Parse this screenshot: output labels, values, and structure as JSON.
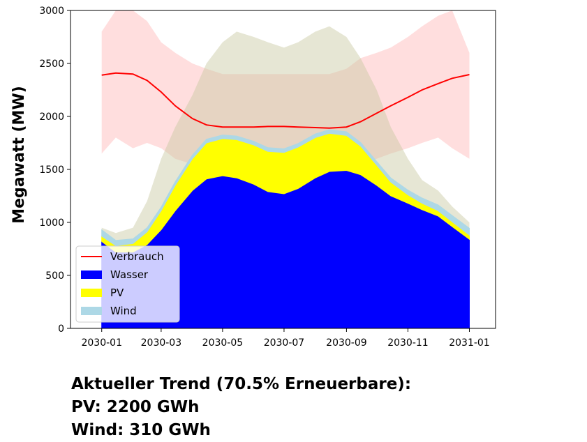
{
  "chart_data": {
    "type": "area",
    "ylabel": "Megawatt (MW)",
    "xlabel": "",
    "title": "",
    "ylim": [
      0,
      3000
    ],
    "xlim": [
      "2029-12-01",
      "2031-01-27"
    ],
    "y_ticks": [
      0,
      500,
      1000,
      1500,
      2000,
      2500,
      3000
    ],
    "x_ticks": [
      "2030-01",
      "2030-03",
      "2030-05",
      "2030-07",
      "2030-09",
      "2030-11",
      "2031-01"
    ],
    "grid": false,
    "legend_position": "lower-left",
    "stacked_series": [
      {
        "name": "Wasser",
        "color": "#0000ff",
        "x": [
          "2030-01-01",
          "2030-01-15",
          "2030-02-01",
          "2030-02-15",
          "2030-03-01",
          "2030-03-15",
          "2030-04-01",
          "2030-04-15",
          "2030-05-01",
          "2030-05-15",
          "2030-06-01",
          "2030-06-15",
          "2030-07-01",
          "2030-07-15",
          "2030-08-01",
          "2030-08-15",
          "2030-09-01",
          "2030-09-15",
          "2030-10-01",
          "2030-10-15",
          "2030-11-01",
          "2030-11-15",
          "2030-12-01",
          "2030-12-15",
          "2031-01-01"
        ],
        "values": [
          820,
          720,
          720,
          790,
          930,
          1110,
          1300,
          1410,
          1440,
          1420,
          1360,
          1290,
          1270,
          1320,
          1420,
          1480,
          1490,
          1450,
          1350,
          1250,
          1180,
          1120,
          1060,
          960,
          840
        ]
      },
      {
        "name": "PV",
        "color": "#ffff00",
        "x": [
          "2030-01-01",
          "2030-01-15",
          "2030-02-01",
          "2030-02-15",
          "2030-03-01",
          "2030-03-15",
          "2030-04-01",
          "2030-04-15",
          "2030-05-01",
          "2030-05-15",
          "2030-06-01",
          "2030-06-15",
          "2030-07-01",
          "2030-07-15",
          "2030-08-01",
          "2030-08-15",
          "2030-09-01",
          "2030-09-15",
          "2030-10-01",
          "2030-10-15",
          "2030-11-01",
          "2030-11-15",
          "2030-12-01",
          "2030-12-15",
          "2031-01-01"
        ],
        "values": [
          50,
          60,
          80,
          120,
          180,
          240,
          300,
          340,
          350,
          360,
          370,
          380,
          390,
          390,
          380,
          360,
          330,
          270,
          190,
          130,
          80,
          60,
          50,
          45,
          40
        ]
      },
      {
        "name": "Wind",
        "color": "#add8e6",
        "x": [
          "2030-01-01",
          "2030-01-15",
          "2030-02-01",
          "2030-02-15",
          "2030-03-01",
          "2030-03-15",
          "2030-04-01",
          "2030-04-15",
          "2030-05-01",
          "2030-05-15",
          "2030-06-01",
          "2030-06-15",
          "2030-07-01",
          "2030-07-15",
          "2030-08-01",
          "2030-08-15",
          "2030-09-01",
          "2030-09-15",
          "2030-10-01",
          "2030-10-15",
          "2030-11-01",
          "2030-11-15",
          "2030-12-01",
          "2030-12-15",
          "2031-01-01"
        ],
        "values": [
          60,
          50,
          45,
          40,
          35,
          35,
          35,
          35,
          35,
          35,
          35,
          35,
          35,
          35,
          35,
          35,
          35,
          35,
          35,
          40,
          45,
          50,
          55,
          60,
          65
        ]
      }
    ],
    "line_series": [
      {
        "name": "Verbrauch",
        "color": "#ff0000",
        "x": [
          "2030-01-01",
          "2030-01-15",
          "2030-02-01",
          "2030-02-15",
          "2030-03-01",
          "2030-03-15",
          "2030-04-01",
          "2030-04-15",
          "2030-05-01",
          "2030-05-15",
          "2030-06-01",
          "2030-06-15",
          "2030-07-01",
          "2030-07-15",
          "2030-08-01",
          "2030-08-15",
          "2030-09-01",
          "2030-09-15",
          "2030-10-01",
          "2030-10-15",
          "2030-11-01",
          "2030-11-15",
          "2030-12-01",
          "2030-12-15",
          "2031-01-01"
        ],
        "values": [
          2390,
          2410,
          2400,
          2340,
          2230,
          2100,
          1980,
          1920,
          1900,
          1900,
          1900,
          1905,
          1905,
          1900,
          1895,
          1890,
          1900,
          1950,
          2030,
          2100,
          2180,
          2250,
          2310,
          2360,
          2395
        ]
      }
    ],
    "background_bands": [
      {
        "color": "#ffcccc",
        "x": [
          "2030-01-01",
          "2030-01-15",
          "2030-02-01",
          "2030-02-15",
          "2030-03-01",
          "2030-03-15",
          "2030-04-01",
          "2030-04-15",
          "2030-05-01",
          "2030-05-15",
          "2030-06-01",
          "2030-06-15",
          "2030-07-01",
          "2030-07-15",
          "2030-08-01",
          "2030-08-15",
          "2030-09-01",
          "2030-09-15",
          "2030-10-01",
          "2030-10-15",
          "2030-11-01",
          "2030-11-15",
          "2030-12-01",
          "2030-12-15",
          "2031-01-01"
        ],
        "low": [
          1650,
          1800,
          1700,
          1750,
          1700,
          1600,
          1550,
          1500,
          1500,
          1500,
          1500,
          1500,
          1500,
          1500,
          1500,
          1500,
          1500,
          1550,
          1600,
          1650,
          1700,
          1750,
          1800,
          1700,
          1600
        ],
        "high": [
          2800,
          3000,
          3000,
          2900,
          2700,
          2600,
          2500,
          2450,
          2400,
          2400,
          2400,
          2400,
          2400,
          2400,
          2400,
          2400,
          2450,
          2550,
          2600,
          2650,
          2750,
          2850,
          2950,
          3000,
          2600
        ]
      },
      {
        "color": "#c8c8a0",
        "x": [
          "2030-01-01",
          "2030-01-15",
          "2030-02-01",
          "2030-02-15",
          "2030-03-01",
          "2030-03-15",
          "2030-04-01",
          "2030-04-15",
          "2030-05-01",
          "2030-05-15",
          "2030-06-01",
          "2030-06-15",
          "2030-07-01",
          "2030-07-15",
          "2030-08-01",
          "2030-08-15",
          "2030-09-01",
          "2030-09-15",
          "2030-10-01",
          "2030-10-15",
          "2030-11-01",
          "2030-11-15",
          "2030-12-01",
          "2030-12-15",
          "2031-01-01"
        ],
        "low": [
          700,
          650,
          650,
          700,
          800,
          900,
          1000,
          1050,
          1000,
          1000,
          950,
          950,
          950,
          1000,
          1000,
          1050,
          1000,
          950,
          900,
          850,
          800,
          800,
          800,
          750,
          700
        ],
        "high": [
          950,
          900,
          950,
          1200,
          1600,
          1900,
          2200,
          2500,
          2700,
          2800,
          2750,
          2700,
          2650,
          2700,
          2800,
          2850,
          2750,
          2550,
          2250,
          1900,
          1600,
          1400,
          1300,
          1150,
          1000
        ]
      }
    ],
    "legend": [
      {
        "label": "Verbrauch",
        "kind": "line",
        "color": "#ff0000"
      },
      {
        "label": "Wasser",
        "kind": "patch",
        "color": "#0000ff"
      },
      {
        "label": "PV",
        "kind": "patch",
        "color": "#ffff00"
      },
      {
        "label": "Wind",
        "kind": "patch",
        "color": "#add8e6"
      }
    ]
  },
  "summary": {
    "line1": "Aktueller Trend (70.5% Erneuerbare):",
    "line2": "PV: 2200 GWh",
    "line3": "Wind: 310 GWh"
  }
}
